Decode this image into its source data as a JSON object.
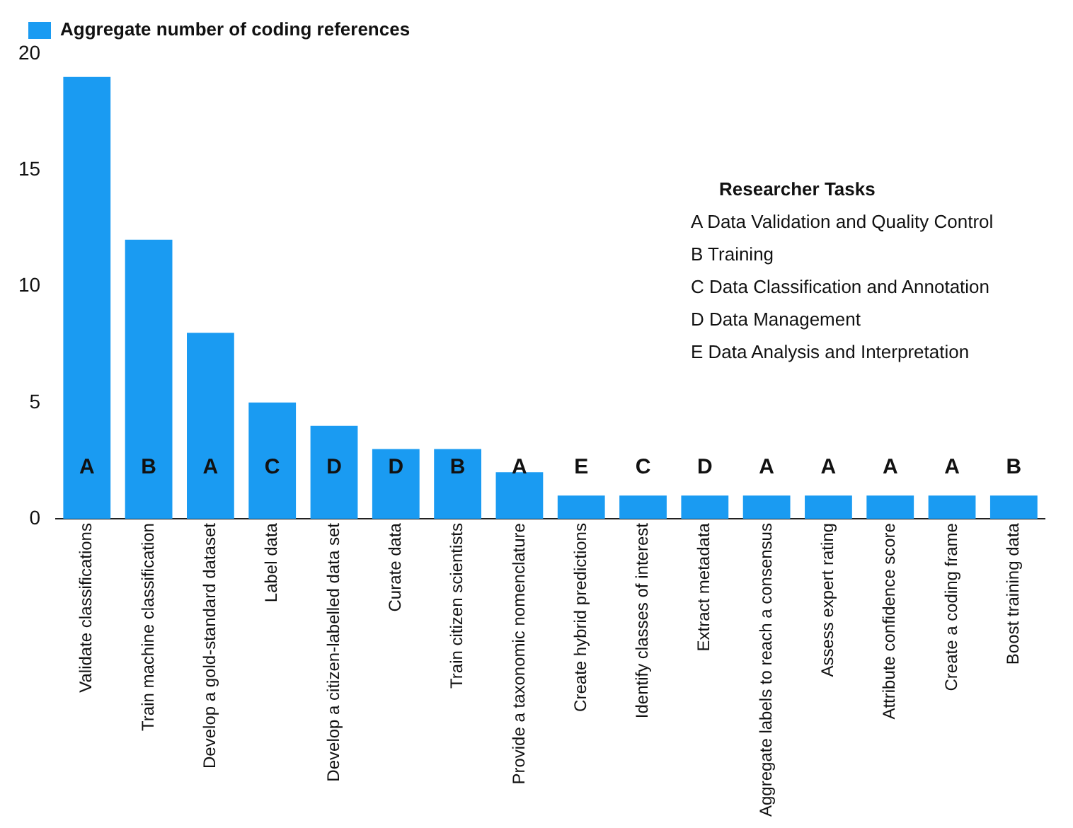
{
  "chart_data": {
    "type": "bar",
    "categories": [
      "Validate classifications",
      "Train machine classification",
      "Develop a gold-standard dataset",
      "Label data",
      "Develop a citizen-labelled data set",
      "Curate data",
      "Train citizen scientists",
      "Provide a taxonomic nomenclature",
      "Create hybrid predictions",
      "Identify classes of interest",
      "Extract metadata",
      "Aggregate labels to reach a consensus",
      "Assess expert rating",
      "Attribute confidence score",
      "Create a coding frame",
      "Boost training data"
    ],
    "series": [
      {
        "name": "Aggregate number of coding references",
        "color": "#1a9bf2",
        "values": [
          19,
          12,
          8,
          5,
          4,
          3,
          3,
          2,
          1,
          1,
          1,
          1,
          1,
          1,
          1,
          1
        ],
        "value_labels": [
          "A",
          "B",
          "A",
          "C",
          "D",
          "D",
          "B",
          "A",
          "E",
          "C",
          "D",
          "A",
          "A",
          "A",
          "A",
          "B"
        ]
      }
    ],
    "ylim": [
      0,
      20
    ],
    "yticks": [
      0,
      5,
      10,
      15,
      20
    ],
    "grid": false,
    "legend": "top left",
    "annotations": [
      "Researcher Tasks",
      "A Data Validation and Quality Control",
      "B Training",
      "C Data Classification and Annotation",
      "D Data Management",
      "E Data Analysis and Interpretation"
    ]
  }
}
